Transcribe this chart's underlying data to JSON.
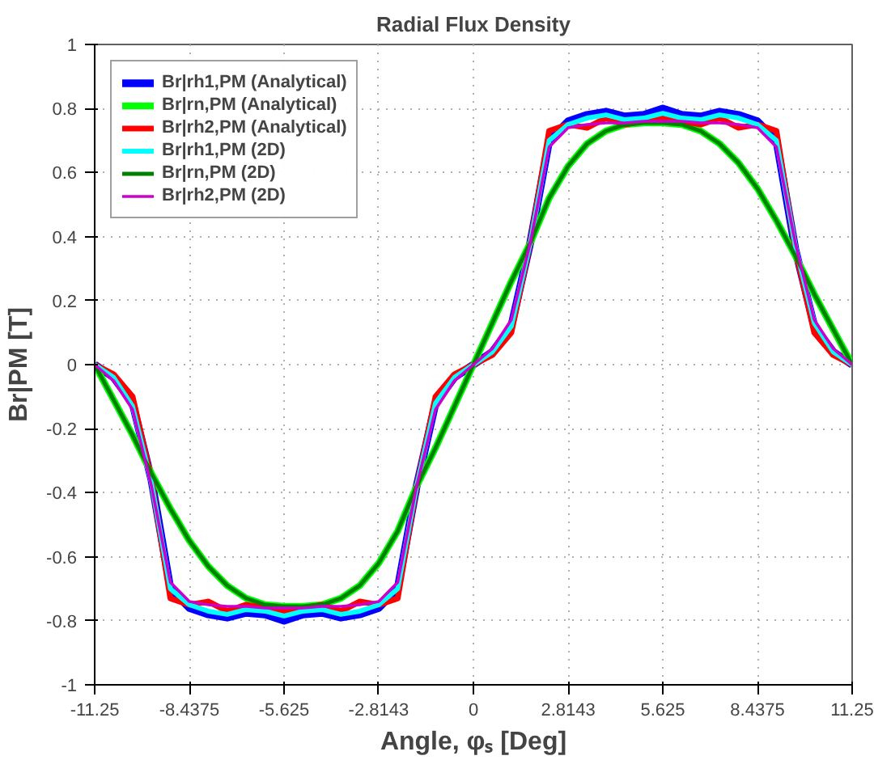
{
  "chart_data": {
    "type": "line",
    "title": "Radial Flux Density",
    "xlabel": "Angle, φₛ [Deg]",
    "ylabel": "Br|PM [T]",
    "x": [
      -11.25,
      -10.6875,
      -10.125,
      -9.5625,
      -9.0,
      -8.4375,
      -7.875,
      -7.3125,
      -6.75,
      -6.1875,
      -5.625,
      -5.0625,
      -4.5,
      -3.9375,
      -3.375,
      -2.8125,
      -2.25,
      -1.6875,
      -1.125,
      -0.5625,
      0,
      0.5625,
      1.125,
      1.6875,
      2.25,
      2.8125,
      3.375,
      3.9375,
      4.5,
      5.0625,
      5.625,
      6.1875,
      6.75,
      7.3125,
      7.875,
      8.4375,
      9.0,
      9.5625,
      10.125,
      10.6875,
      11.25
    ],
    "series": [
      {
        "name": "Br|rh1,PM (Analytical)",
        "color": "#0000ff",
        "values": [
          0,
          -0.04,
          -0.12,
          -0.36,
          -0.7,
          -0.76,
          -0.78,
          -0.79,
          -0.775,
          -0.78,
          -0.8,
          -0.78,
          -0.775,
          -0.79,
          -0.78,
          -0.76,
          -0.7,
          -0.38,
          -0.12,
          -0.04,
          0,
          0.04,
          0.12,
          0.38,
          0.7,
          0.76,
          0.78,
          0.79,
          0.775,
          0.78,
          0.8,
          0.78,
          0.775,
          0.79,
          0.78,
          0.76,
          0.7,
          0.36,
          0.12,
          0.04,
          0
        ]
      },
      {
        "name": "Br|rn,PM (Analytical)",
        "color": "#00ff00",
        "values": [
          0,
          -0.11,
          -0.22,
          -0.34,
          -0.45,
          -0.55,
          -0.63,
          -0.69,
          -0.73,
          -0.75,
          -0.755,
          -0.755,
          -0.75,
          -0.73,
          -0.69,
          -0.62,
          -0.52,
          -0.38,
          -0.26,
          -0.13,
          0,
          0.13,
          0.26,
          0.38,
          0.52,
          0.62,
          0.69,
          0.73,
          0.75,
          0.755,
          0.755,
          0.75,
          0.73,
          0.69,
          0.63,
          0.55,
          0.45,
          0.34,
          0.22,
          0.11,
          0
        ]
      },
      {
        "name": "Br|rh2,PM (Analytical)",
        "color": "#ff0000",
        "values": [
          0,
          -0.03,
          -0.1,
          -0.36,
          -0.73,
          -0.75,
          -0.74,
          -0.77,
          -0.75,
          -0.76,
          -0.77,
          -0.76,
          -0.75,
          -0.77,
          -0.74,
          -0.75,
          -0.73,
          -0.38,
          -0.1,
          -0.03,
          0,
          0.03,
          0.1,
          0.38,
          0.73,
          0.75,
          0.74,
          0.77,
          0.75,
          0.76,
          0.77,
          0.76,
          0.75,
          0.77,
          0.74,
          0.75,
          0.73,
          0.36,
          0.1,
          0.03,
          0
        ]
      },
      {
        "name": "Br|rh1,PM (2D)",
        "color": "#00ffff",
        "values": [
          0,
          -0.04,
          -0.13,
          -0.37,
          -0.7,
          -0.75,
          -0.77,
          -0.78,
          -0.765,
          -0.77,
          -0.785,
          -0.77,
          -0.765,
          -0.78,
          -0.77,
          -0.75,
          -0.7,
          -0.38,
          -0.12,
          -0.04,
          0,
          0.04,
          0.12,
          0.38,
          0.7,
          0.75,
          0.77,
          0.78,
          0.765,
          0.77,
          0.785,
          0.77,
          0.765,
          0.78,
          0.77,
          0.75,
          0.7,
          0.37,
          0.13,
          0.04,
          0
        ]
      },
      {
        "name": "Br|rn,PM (2D)",
        "color": "#008000",
        "values": [
          0,
          -0.11,
          -0.22,
          -0.34,
          -0.45,
          -0.55,
          -0.63,
          -0.69,
          -0.73,
          -0.75,
          -0.755,
          -0.755,
          -0.75,
          -0.73,
          -0.69,
          -0.62,
          -0.52,
          -0.38,
          -0.26,
          -0.13,
          0,
          0.13,
          0.26,
          0.38,
          0.52,
          0.62,
          0.69,
          0.73,
          0.75,
          0.755,
          0.755,
          0.75,
          0.73,
          0.69,
          0.63,
          0.55,
          0.45,
          0.34,
          0.22,
          0.11,
          0
        ]
      },
      {
        "name": "Br|rh2,PM (2D)",
        "color": "#cc00cc",
        "values": [
          0,
          -0.05,
          -0.14,
          -0.38,
          -0.68,
          -0.74,
          -0.75,
          -0.755,
          -0.755,
          -0.76,
          -0.76,
          -0.76,
          -0.755,
          -0.755,
          -0.75,
          -0.74,
          -0.68,
          -0.38,
          -0.14,
          -0.05,
          0,
          0.05,
          0.14,
          0.38,
          0.68,
          0.74,
          0.75,
          0.755,
          0.755,
          0.76,
          0.76,
          0.76,
          0.755,
          0.755,
          0.75,
          0.74,
          0.68,
          0.38,
          0.14,
          0.05,
          0
        ]
      }
    ],
    "xlim": [
      -11.25,
      11.25
    ],
    "ylim": [
      -1,
      1
    ],
    "xticks": [
      -11.25,
      -8.4375,
      -5.625,
      -2.8143,
      0,
      2.8143,
      5.625,
      8.4375,
      11.25
    ],
    "yticks": [
      -1,
      -0.8,
      -0.6,
      -0.4,
      -0.2,
      0,
      0.2,
      0.4,
      0.6,
      0.8,
      1
    ],
    "grid": true,
    "legend": "top left",
    "line_style": "solid",
    "marker": "none"
  }
}
